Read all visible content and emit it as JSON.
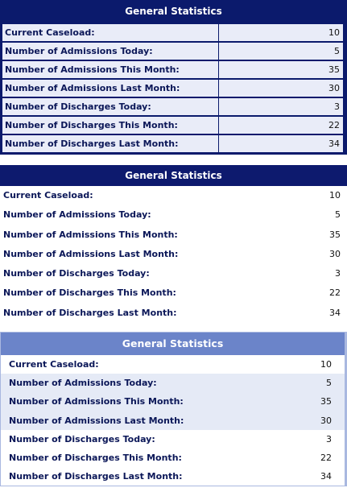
{
  "tables": [
    {
      "title": "General Statistics",
      "rows": [
        [
          "Current Caseload:",
          10
        ],
        [
          "Number of Admissions Today:",
          5
        ],
        [
          "Number of Admissions This Month:",
          35
        ],
        [
          "Number of Admissions Last Month:",
          30
        ],
        [
          "Number of Discharges Today:",
          3
        ],
        [
          "Number of Discharges This Month:",
          22
        ],
        [
          "Number of Discharges Last Month:",
          34
        ]
      ]
    },
    {
      "title": "General Statistics",
      "rows": [
        [
          "Current Caseload:",
          10
        ],
        [
          "Number of Admissions Today:",
          5
        ],
        [
          "Number of Admissions This Month:",
          35
        ],
        [
          "Number of Admissions Last Month:",
          30
        ],
        [
          "Number of Discharges Today:",
          3
        ],
        [
          "Number of Discharges This Month:",
          22
        ],
        [
          "Number of Discharges Last Month:",
          34
        ]
      ]
    },
    {
      "title": "General Statistics",
      "rows": [
        [
          "Current Caseload:",
          10
        ],
        [
          "Number of Admissions Today:",
          5
        ],
        [
          "Number of Admissions This Month:",
          35
        ],
        [
          "Number of Admissions Last Month:",
          30
        ],
        [
          "Number of Discharges Today:",
          3
        ],
        [
          "Number of Discharges This Month:",
          22
        ],
        [
          "Number of Discharges Last Month:",
          34
        ]
      ]
    }
  ]
}
